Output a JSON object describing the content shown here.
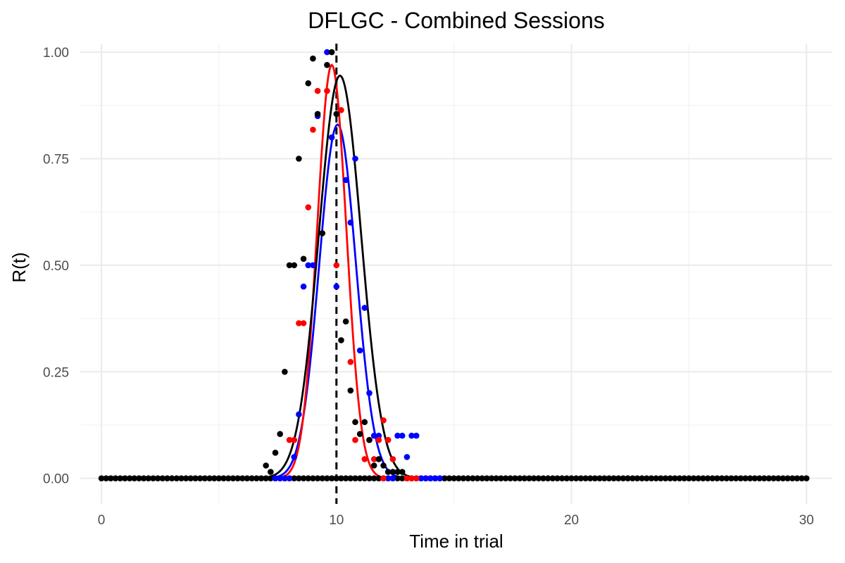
{
  "chart_data": {
    "type": "scatter",
    "title": "DFLGC - Combined Sessions",
    "xlabel": "Time in trial",
    "ylabel": "R(t)",
    "xlim": [
      -0.9,
      31.1
    ],
    "ylim": [
      -0.06,
      1.02
    ],
    "x_ticks": [
      0,
      10,
      20,
      30
    ],
    "x_tick_labels": [
      "0",
      "10",
      "20",
      "30"
    ],
    "y_ticks": [
      0,
      0.25,
      0.5,
      0.75,
      1.0
    ],
    "y_tick_labels": [
      "0.00",
      "0.25",
      "0.50",
      "0.75",
      "1.00"
    ],
    "grid": true,
    "legend": "none",
    "reference_line": {
      "x": 10,
      "style": "dashed",
      "color": "#000000"
    },
    "series": [
      {
        "color": "#0000ff",
        "points": [
          [
            7.4,
            0
          ],
          [
            7.6,
            0
          ],
          [
            7.8,
            0
          ],
          [
            8.0,
            0
          ],
          [
            8.2,
            0.05
          ],
          [
            8.4,
            0.15
          ],
          [
            8.6,
            0.45
          ],
          [
            8.8,
            0.5
          ],
          [
            9.0,
            0.5
          ],
          [
            9.2,
            0.85
          ],
          [
            9.6,
            1.0
          ],
          [
            9.8,
            0.8
          ],
          [
            10.0,
            0.45
          ],
          [
            10.4,
            0.7
          ],
          [
            10.6,
            0.6
          ],
          [
            10.8,
            0.75
          ],
          [
            11.0,
            0.3
          ],
          [
            11.2,
            0.4
          ],
          [
            11.4,
            0.2
          ],
          [
            11.6,
            0.1
          ],
          [
            11.8,
            0.1
          ],
          [
            12.0,
            0
          ],
          [
            12.2,
            0
          ],
          [
            12.4,
            0
          ],
          [
            12.6,
            0.1
          ],
          [
            12.8,
            0.1
          ],
          [
            13.0,
            0.05
          ],
          [
            13.2,
            0.1
          ],
          [
            13.4,
            0.1
          ],
          [
            13.6,
            0
          ],
          [
            13.8,
            0
          ],
          [
            14.0,
            0
          ],
          [
            14.2,
            0
          ],
          [
            14.4,
            0
          ]
        ],
        "fit": {
          "peak": 0.83,
          "center": 10.05,
          "sd": 0.78
        }
      },
      {
        "color": "#ff0000",
        "points": [
          [
            8.0,
            0.09
          ],
          [
            8.2,
            0.09
          ],
          [
            8.4,
            0.364
          ],
          [
            8.6,
            0.364
          ],
          [
            8.8,
            0.636
          ],
          [
            9.0,
            0.818
          ],
          [
            9.2,
            0.909
          ],
          [
            9.6,
            0.909
          ],
          [
            10.0,
            0.5
          ],
          [
            10.2,
            0.864
          ],
          [
            10.6,
            0.273
          ],
          [
            10.8,
            0.09
          ],
          [
            11.2,
            0.045
          ],
          [
            11.4,
            0.09
          ],
          [
            11.6,
            0.045
          ],
          [
            11.8,
            0.09
          ],
          [
            12.0,
            0.136
          ],
          [
            12.2,
            0.09
          ],
          [
            12.4,
            0.045
          ],
          [
            12.0,
            0
          ],
          [
            13.0,
            0
          ],
          [
            13.2,
            0
          ],
          [
            13.4,
            0
          ]
        ],
        "fit": {
          "peak": 0.97,
          "center": 9.8,
          "sd": 0.62
        }
      },
      {
        "color": "#000000",
        "points": [
          [
            7.0,
            0.03
          ],
          [
            7.2,
            0.015
          ],
          [
            7.4,
            0.06
          ],
          [
            7.6,
            0.104
          ],
          [
            7.8,
            0.25
          ],
          [
            8.0,
            0.5
          ],
          [
            8.2,
            0.5
          ],
          [
            8.4,
            0.75
          ],
          [
            8.6,
            0.515
          ],
          [
            8.8,
            0.927
          ],
          [
            9.0,
            0.985
          ],
          [
            9.2,
            0.855
          ],
          [
            9.4,
            0.575
          ],
          [
            9.6,
            0.97
          ],
          [
            9.8,
            1.0
          ],
          [
            10.0,
            0.855
          ],
          [
            10.2,
            0.324
          ],
          [
            10.4,
            0.368
          ],
          [
            10.6,
            0.206
          ],
          [
            10.8,
            0.132
          ],
          [
            11.0,
            0.104
          ],
          [
            11.2,
            0.132
          ],
          [
            11.4,
            0.09
          ],
          [
            11.6,
            0.03
          ],
          [
            11.8,
            0.045
          ],
          [
            12.0,
            0.03
          ],
          [
            12.2,
            0.015
          ],
          [
            12.4,
            0.015
          ],
          [
            12.6,
            0.015
          ],
          [
            12.8,
            0.015
          ]
        ],
        "fit": {
          "peak": 0.945,
          "center": 10.15,
          "sd": 0.9
        }
      }
    ],
    "zero_baseline_points": {
      "x_start": 0,
      "x_end": 30,
      "step": 0.2,
      "y": 0,
      "color": "#000000"
    }
  }
}
